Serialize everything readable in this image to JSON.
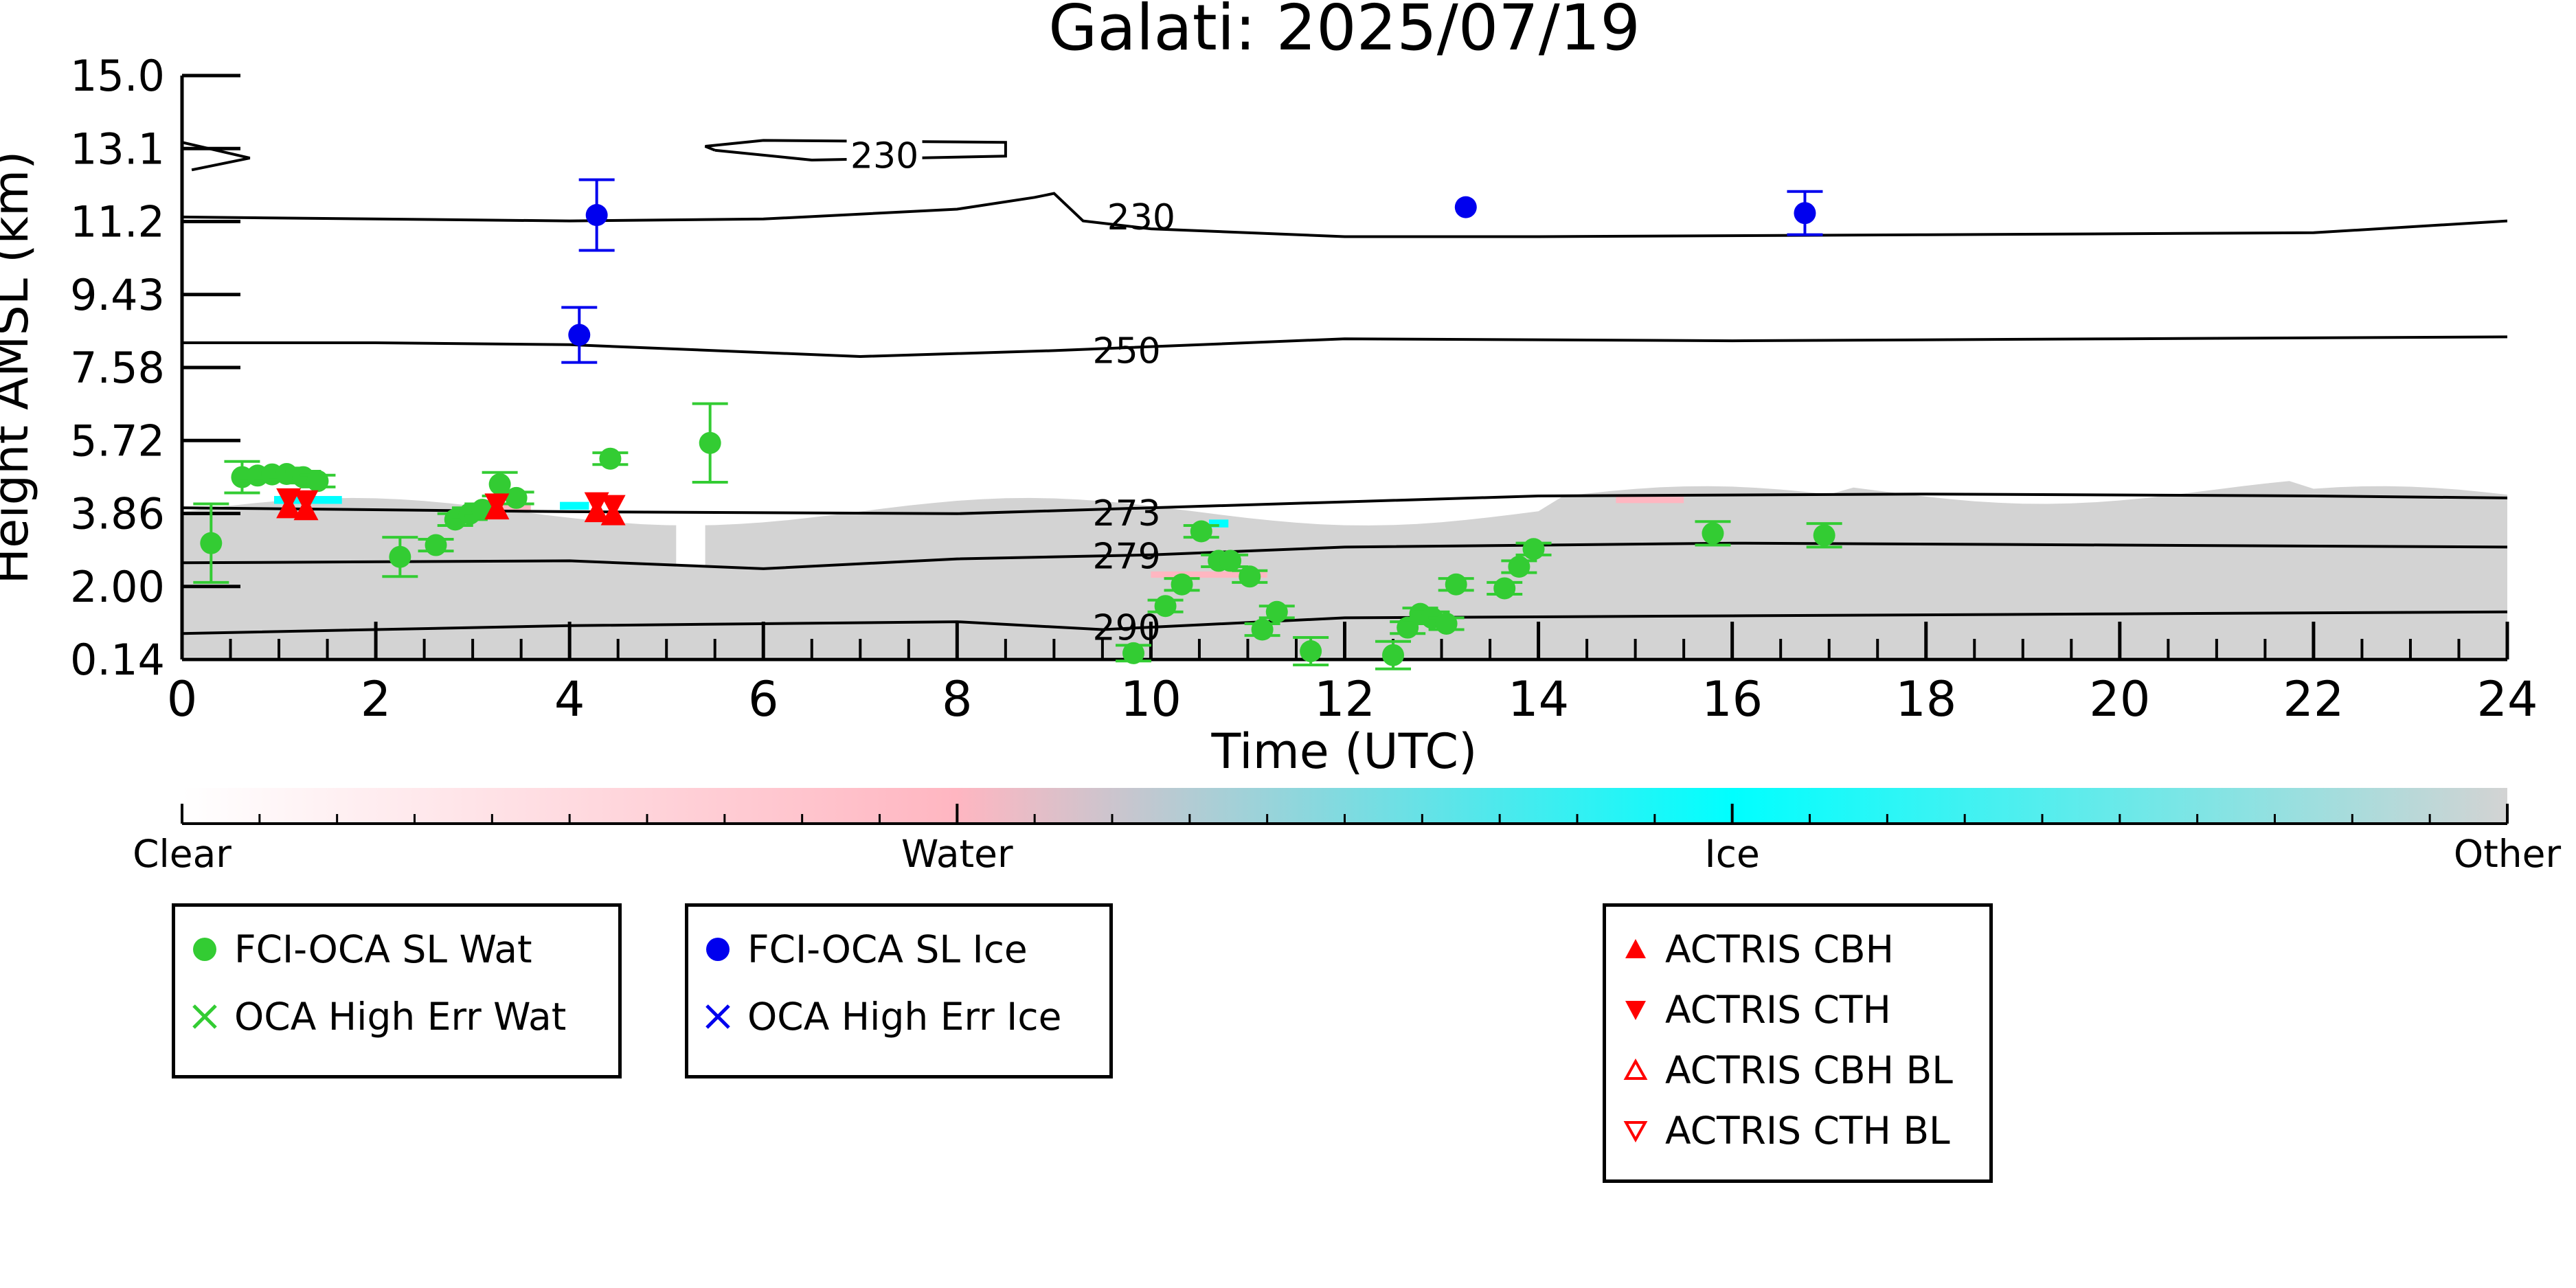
{
  "chart_data": {
    "type": "scatter",
    "title": "Galati: 2025/07/19",
    "xlabel": "Time (UTC)",
    "ylabel": "Height AMSL (km)",
    "xlim": [
      0,
      24
    ],
    "ylim": [
      0.14,
      15.0
    ],
    "xticks": [
      "0",
      "2",
      "4",
      "6",
      "8",
      "10",
      "12",
      "14",
      "16",
      "18",
      "20",
      "22",
      "24"
    ],
    "yticks": [
      "0.14",
      "2.00",
      "3.86",
      "5.72",
      "7.58",
      "9.43",
      "11.2",
      "13.1",
      "15.0"
    ],
    "background": "cloud-phase curtain (mostly 'Other', grey) between about 0.2 and 5.5 km",
    "contours": [
      {
        "label": "230",
        "points": [
          [
            0,
            11.4
          ],
          [
            2,
            11.35
          ],
          [
            4,
            11.3
          ],
          [
            6,
            11.35
          ],
          [
            8,
            11.6
          ],
          [
            8.8,
            11.9
          ],
          [
            9.0,
            12.0
          ],
          [
            9.3,
            11.3
          ],
          [
            10,
            11.1
          ],
          [
            12,
            10.9
          ],
          [
            14,
            10.9
          ],
          [
            18,
            10.95
          ],
          [
            22,
            11.0
          ],
          [
            24,
            11.3
          ]
        ]
      },
      {
        "label": "230",
        "points": [
          [
            5.5,
            13.1
          ],
          [
            6.5,
            12.85
          ],
          [
            8.5,
            12.95
          ],
          [
            8.5,
            13.3
          ],
          [
            6,
            13.35
          ],
          [
            5.4,
            13.2
          ],
          [
            5.5,
            13.1
          ]
        ]
      },
      {
        "label": "230",
        "points": [
          [
            0,
            13.3
          ],
          [
            0.7,
            12.9
          ],
          [
            0.1,
            12.6
          ]
        ]
      },
      {
        "label": "250",
        "points": [
          [
            0,
            8.2
          ],
          [
            2,
            8.2
          ],
          [
            4,
            8.15
          ],
          [
            7,
            7.85
          ],
          [
            9,
            8.0
          ],
          [
            12,
            8.3
          ],
          [
            16,
            8.25
          ],
          [
            20,
            8.3
          ],
          [
            24,
            8.35
          ]
        ]
      },
      {
        "label": "273",
        "points": [
          [
            0,
            4.0
          ],
          [
            4,
            3.9
          ],
          [
            8,
            3.85
          ],
          [
            10,
            4.0
          ],
          [
            12,
            4.15
          ],
          [
            14,
            4.3
          ],
          [
            18,
            4.35
          ],
          [
            22,
            4.3
          ],
          [
            24,
            4.25
          ]
        ]
      },
      {
        "label": "279",
        "points": [
          [
            0,
            2.6
          ],
          [
            4,
            2.65
          ],
          [
            6,
            2.45
          ],
          [
            8,
            2.7
          ],
          [
            10,
            2.8
          ],
          [
            12,
            3.0
          ],
          [
            16,
            3.1
          ],
          [
            20,
            3.05
          ],
          [
            24,
            3.0
          ]
        ]
      },
      {
        "label": "290",
        "points": [
          [
            0,
            0.8
          ],
          [
            4,
            1.0
          ],
          [
            8,
            1.1
          ],
          [
            9.5,
            0.9
          ],
          [
            12,
            1.2
          ],
          [
            16,
            1.25
          ],
          [
            20,
            1.3
          ],
          [
            24,
            1.35
          ]
        ]
      }
    ],
    "series": [
      {
        "name": "FCI-OCA SL Wat",
        "color": "#33cc33",
        "marker": "circle",
        "points": [
          {
            "x": 0.3,
            "y": 3.1,
            "err": 1.0
          },
          {
            "x": 0.62,
            "y": 4.78,
            "err": 0.4
          },
          {
            "x": 0.78,
            "y": 4.82,
            "err": 0.15
          },
          {
            "x": 0.93,
            "y": 4.85,
            "err": 0.15
          },
          {
            "x": 1.08,
            "y": 4.86,
            "err": 0.15
          },
          {
            "x": 1.25,
            "y": 4.78,
            "err": 0.15
          },
          {
            "x": 1.4,
            "y": 4.68,
            "err": 0.15
          },
          {
            "x": 2.25,
            "y": 2.75,
            "err": 0.5
          },
          {
            "x": 2.62,
            "y": 3.05,
            "err": 0.15
          },
          {
            "x": 2.82,
            "y": 3.7,
            "err": 0.15
          },
          {
            "x": 2.97,
            "y": 3.85,
            "err": 0.15
          },
          {
            "x": 3.1,
            "y": 3.95,
            "err": 0.15
          },
          {
            "x": 3.28,
            "y": 4.6,
            "err": 0.3
          },
          {
            "x": 3.45,
            "y": 4.25,
            "err": 0.15
          },
          {
            "x": 4.42,
            "y": 5.25,
            "err": 0.15
          },
          {
            "x": 5.45,
            "y": 5.65,
            "err": 1.0
          },
          {
            "x": 9.82,
            "y": 0.3,
            "err": 0.2
          },
          {
            "x": 10.15,
            "y": 1.5,
            "err": 0.15
          },
          {
            "x": 10.32,
            "y": 2.05,
            "err": 0.15
          },
          {
            "x": 10.52,
            "y": 3.4,
            "err": 0.15
          },
          {
            "x": 10.7,
            "y": 2.65,
            "err": 0.15
          },
          {
            "x": 10.82,
            "y": 2.65,
            "err": 0.15
          },
          {
            "x": 11.02,
            "y": 2.25,
            "err": 0.15
          },
          {
            "x": 11.15,
            "y": 0.9,
            "err": 0.15
          },
          {
            "x": 11.3,
            "y": 1.35,
            "err": 0.15
          },
          {
            "x": 11.65,
            "y": 0.35,
            "err": 0.35
          },
          {
            "x": 12.5,
            "y": 0.25,
            "err": 0.35
          },
          {
            "x": 12.65,
            "y": 0.95,
            "err": 0.15
          },
          {
            "x": 12.78,
            "y": 1.3,
            "err": 0.15
          },
          {
            "x": 12.9,
            "y": 1.2,
            "err": 0.15
          },
          {
            "x": 13.05,
            "y": 1.05,
            "err": 0.15
          },
          {
            "x": 13.15,
            "y": 2.05,
            "err": 0.15
          },
          {
            "x": 13.65,
            "y": 1.95,
            "err": 0.15
          },
          {
            "x": 13.8,
            "y": 2.5,
            "err": 0.15
          },
          {
            "x": 13.95,
            "y": 2.95,
            "err": 0.15
          },
          {
            "x": 15.8,
            "y": 3.35,
            "err": 0.3
          },
          {
            "x": 16.95,
            "y": 3.3,
            "err": 0.3
          }
        ]
      },
      {
        "name": "FCI-OCA SL Ice",
        "color": "#0000ee",
        "marker": "circle",
        "points": [
          {
            "x": 4.1,
            "y": 8.4,
            "err": 0.7
          },
          {
            "x": 4.28,
            "y": 11.45,
            "err": 0.9
          },
          {
            "x": 13.25,
            "y": 11.65,
            "err": 0
          },
          {
            "x": 16.75,
            "y": 11.5,
            "err": 0.55
          }
        ]
      },
      {
        "name": "ACTRIS CBH",
        "color": "#ff0000",
        "marker": "triangle-up",
        "points": [
          {
            "x": 1.1,
            "y": 3.98
          },
          {
            "x": 1.28,
            "y": 3.93
          },
          {
            "x": 3.25,
            "y": 3.95
          },
          {
            "x": 4.28,
            "y": 3.88
          },
          {
            "x": 4.45,
            "y": 3.8
          }
        ]
      },
      {
        "name": "ACTRIS CTH",
        "color": "#ff0000",
        "marker": "triangle-down",
        "points": [
          {
            "x": 1.1,
            "y": 4.25
          },
          {
            "x": 1.28,
            "y": 4.2
          },
          {
            "x": 3.25,
            "y": 4.12
          },
          {
            "x": 4.28,
            "y": 4.15
          },
          {
            "x": 4.45,
            "y": 4.08
          }
        ]
      }
    ],
    "colorbar": {
      "ticks": [
        "Clear",
        "Water",
        "Ice",
        "Other"
      ],
      "colors": [
        "#ffffff",
        "#ffb6c1",
        "#00ffff",
        "#d3d3d3"
      ]
    },
    "legends": [
      {
        "entries": [
          {
            "label": "FCI-OCA SL Wat",
            "marker": "circle",
            "color": "#33cc33"
          },
          {
            "label": "OCA High Err Wat",
            "marker": "x",
            "color": "#33cc33"
          }
        ]
      },
      {
        "entries": [
          {
            "label": "FCI-OCA SL Ice",
            "marker": "circle",
            "color": "#0000ee"
          },
          {
            "label": "OCA High Err Ice",
            "marker": "x",
            "color": "#0000ee"
          }
        ]
      },
      {
        "entries": [
          {
            "label": "ACTRIS CBH",
            "marker": "triangle-up",
            "color": "#ff0000"
          },
          {
            "label": "ACTRIS CTH",
            "marker": "triangle-down",
            "color": "#ff0000"
          },
          {
            "label": "ACTRIS CBH BL",
            "marker": "triangle-up-open",
            "color": "#ff0000"
          },
          {
            "label": "ACTRIS CTH BL",
            "marker": "triangle-down-open",
            "color": "#ff0000"
          }
        ]
      }
    ]
  }
}
